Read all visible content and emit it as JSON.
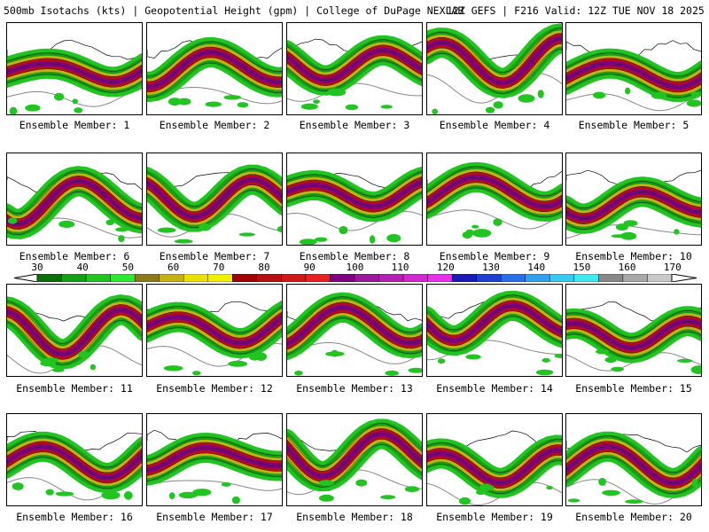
{
  "header": {
    "left": "500mb Isotachs (kts) | Geopotential Height (gpm) | College of DuPage NEXLAB",
    "right": "12Z GEFS | F216 Valid: 12Z TUE NOV 18 2025"
  },
  "colorbar": {
    "labels": [
      "30",
      "40",
      "50",
      "60",
      "70",
      "80",
      "90",
      "100",
      "110",
      "120",
      "130",
      "140",
      "150",
      "160",
      "170"
    ],
    "colors": [
      "#0b6e0b",
      "#14a014",
      "#22c422",
      "#2ee82e",
      "#8c7a1a",
      "#c4b214",
      "#e8e000",
      "#f0f000",
      "#a00000",
      "#b81010",
      "#d01818",
      "#e82020",
      "#800080",
      "#9a189a",
      "#b420b4",
      "#d028d0",
      "#e830e8",
      "#1a1ab4",
      "#2040d0",
      "#2870e8",
      "#30a0f0",
      "#38c8f0",
      "#40e8f0",
      "#888888",
      "#a8a8a8",
      "#c8c8c8"
    ]
  },
  "members": [
    {
      "label": "Ensemble Member: 1"
    },
    {
      "label": "Ensemble Member: 2"
    },
    {
      "label": "Ensemble Member: 3"
    },
    {
      "label": "Ensemble Member: 4"
    },
    {
      "label": "Ensemble Member: 5"
    },
    {
      "label": "Ensemble Member: 6"
    },
    {
      "label": "Ensemble Member: 7"
    },
    {
      "label": "Ensemble Member: 8"
    },
    {
      "label": "Ensemble Member: 9"
    },
    {
      "label": "Ensemble Member: 10"
    },
    {
      "label": "Ensemble Member: 11"
    },
    {
      "label": "Ensemble Member: 12"
    },
    {
      "label": "Ensemble Member: 13"
    },
    {
      "label": "Ensemble Member: 14"
    },
    {
      "label": "Ensemble Member: 15"
    },
    {
      "label": "Ensemble Member: 16"
    },
    {
      "label": "Ensemble Member: 17"
    },
    {
      "label": "Ensemble Member: 18"
    },
    {
      "label": "Ensemble Member: 19"
    },
    {
      "label": "Ensemble Member: 20"
    }
  ]
}
